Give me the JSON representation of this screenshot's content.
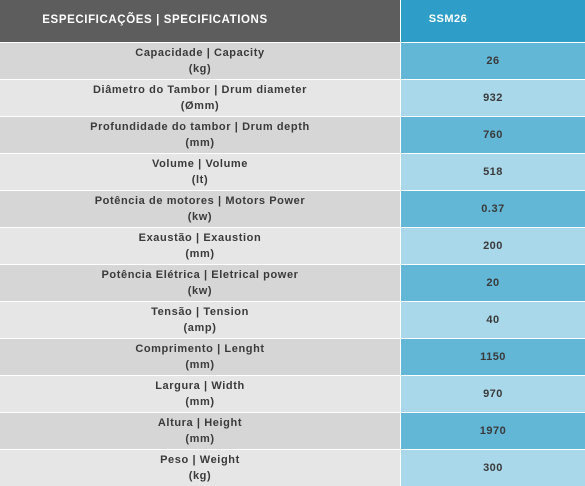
{
  "header": {
    "spec_label": "ESPECIFICAÇÕES | SPECIFICATIONS",
    "model": "SSM26"
  },
  "rows": [
    {
      "line1": "Capacidade | Capacity",
      "line2": "(kg)",
      "value": "26"
    },
    {
      "line1": "Diâmetro do Tambor | Drum diameter",
      "line2": "(Ømm)",
      "value": "932"
    },
    {
      "line1": "Profundidade do tambor | Drum depth",
      "line2": "(mm)",
      "value": "760"
    },
    {
      "line1": "Volume | Volume",
      "line2": "(lt)",
      "value": "518"
    },
    {
      "line1": "Potência de motores | Motors Power",
      "line2": "(kw)",
      "value": "0.37"
    },
    {
      "line1": "Exaustão | Exaustion",
      "line2": "(mm)",
      "value": "200"
    },
    {
      "line1": "Potência Elétrica | Eletrical power",
      "line2": "(kw)",
      "value": "20"
    },
    {
      "line1": "Tensão | Tension",
      "line2": "(amp)",
      "value": "40"
    },
    {
      "line1": "Comprimento | Lenght",
      "line2": "(mm)",
      "value": "1150"
    },
    {
      "line1": "Largura | Width",
      "line2": "(mm)",
      "value": "970"
    },
    {
      "line1": "Altura | Height",
      "line2": "(mm)",
      "value": "1970"
    },
    {
      "line1": "Peso | Weight",
      "line2": "(kg)",
      "value": "300"
    }
  ]
}
